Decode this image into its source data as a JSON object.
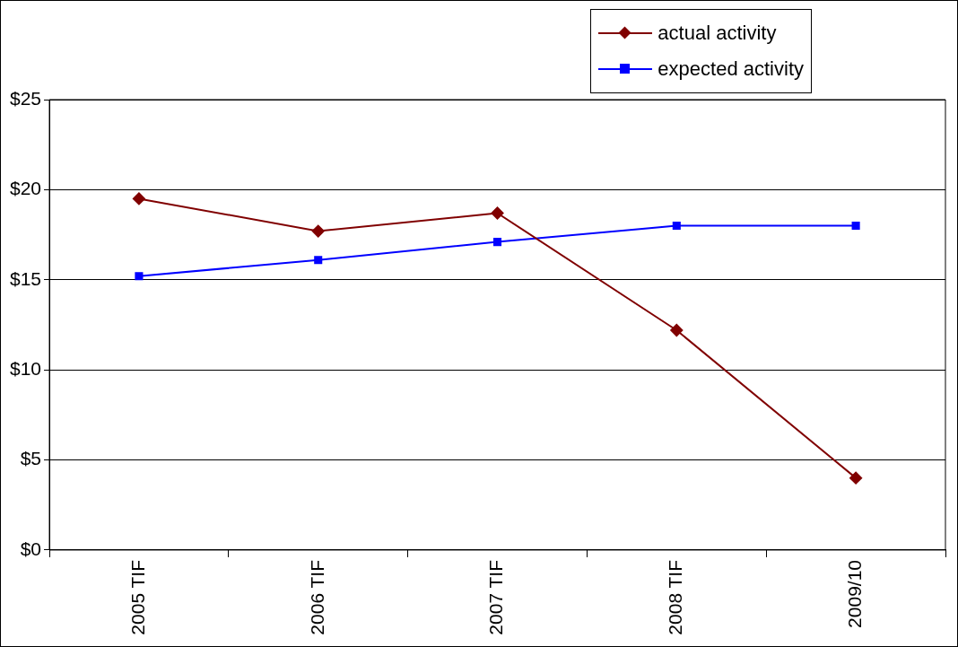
{
  "chart_data": {
    "type": "line",
    "categories": [
      "2005 TIF",
      "2006 TIF",
      "2007 TIF",
      "2008 TIF",
      "2009/10"
    ],
    "series": [
      {
        "name": "actual activity",
        "color": "#800000",
        "marker": "diamond",
        "values": [
          19.5,
          17.7,
          18.7,
          12.2,
          4.0
        ]
      },
      {
        "name": "expected activity",
        "color": "#0000ff",
        "marker": "square",
        "values": [
          15.2,
          16.1,
          17.1,
          18.0,
          18.0
        ]
      }
    ],
    "ylim": [
      0,
      25
    ],
    "yticks": [
      {
        "value": 0,
        "label": "$0"
      },
      {
        "value": 5,
        "label": "$5"
      },
      {
        "value": 10,
        "label": "$10"
      },
      {
        "value": 15,
        "label": "$15"
      },
      {
        "value": 20,
        "label": "$20"
      },
      {
        "value": 25,
        "label": "$25"
      }
    ],
    "grid": "y",
    "legend": "top right",
    "line_style": "solid"
  }
}
